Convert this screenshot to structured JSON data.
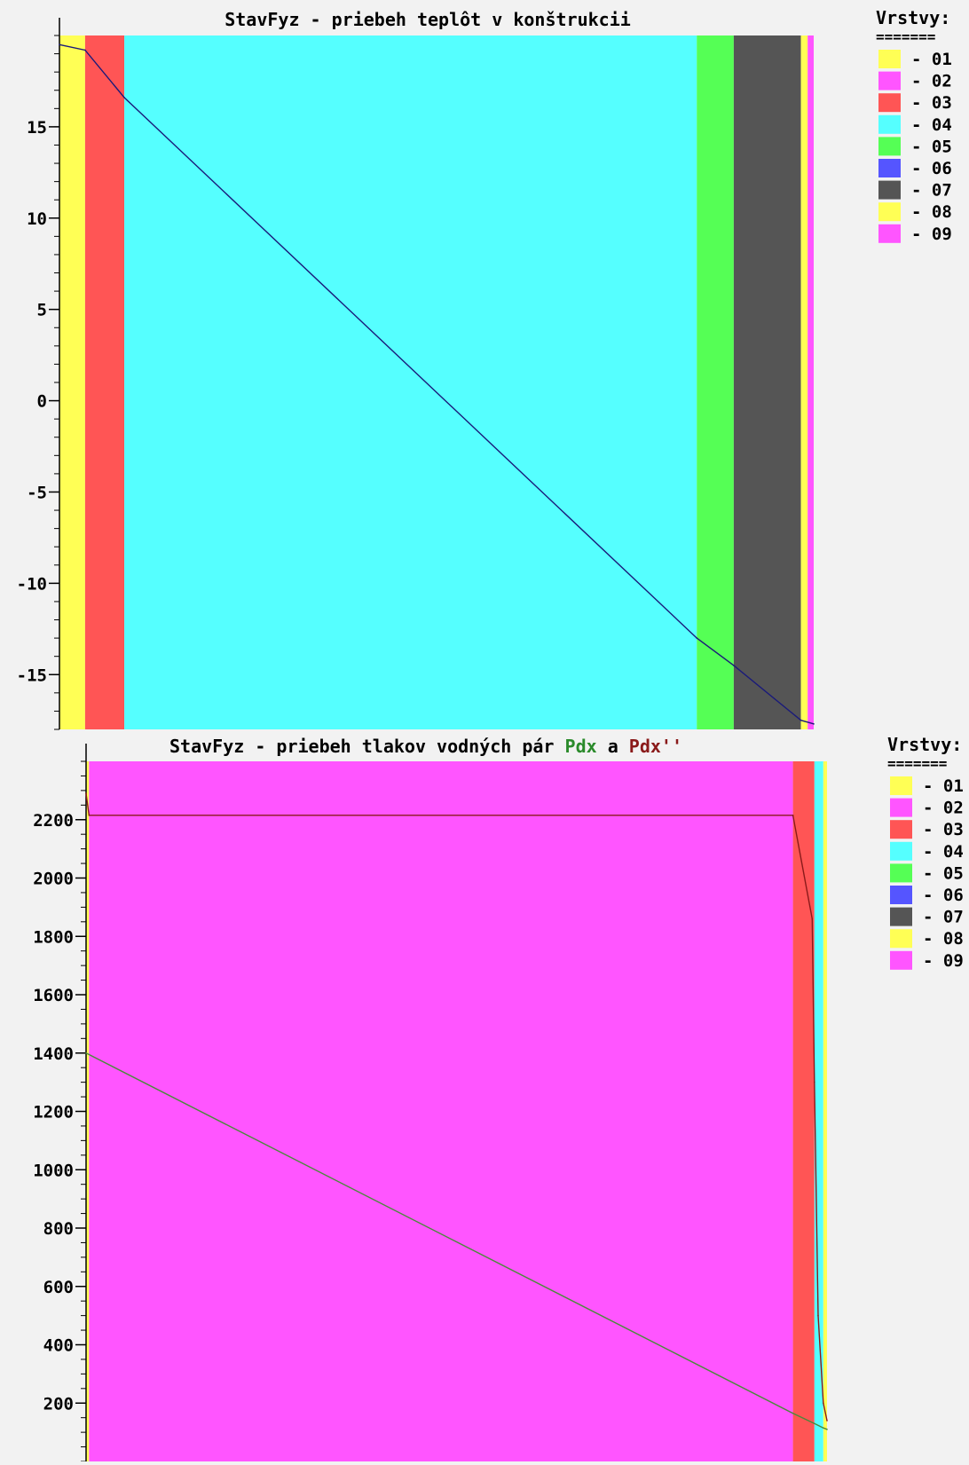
{
  "colors": {
    "background": "#f2f2f2",
    "axis": "#000000",
    "temp_line": "#1a1a7a",
    "pdx_line": "#4a8a3a",
    "pdx_sat_line": "#8a1a1a",
    "title_green": "#2a8a2a",
    "title_red": "#8a1a1a"
  },
  "legend_top": {
    "title": "Vrstvy:",
    "rule": "=======",
    "items": [
      {
        "label": "- 01",
        "color": "#ffff55"
      },
      {
        "label": "- 02",
        "color": "#ff55ff"
      },
      {
        "label": "- 03",
        "color": "#ff5555"
      },
      {
        "label": "- 04",
        "color": "#55ffff"
      },
      {
        "label": "- 05",
        "color": "#55ff55"
      },
      {
        "label": "- 06",
        "color": "#5555ff"
      },
      {
        "label": "- 07",
        "color": "#555555"
      },
      {
        "label": "- 08",
        "color": "#ffff55"
      },
      {
        "label": "- 09",
        "color": "#ff55ff"
      }
    ]
  },
  "legend_bottom": {
    "title": "Vrstvy:",
    "rule": "=======",
    "items": [
      {
        "label": "- 01",
        "color": "#ffff55"
      },
      {
        "label": "- 02",
        "color": "#ff55ff"
      },
      {
        "label": "- 03",
        "color": "#ff5555"
      },
      {
        "label": "- 04",
        "color": "#55ffff"
      },
      {
        "label": "- 05",
        "color": "#55ff55"
      },
      {
        "label": "- 06",
        "color": "#5555ff"
      },
      {
        "label": "- 07",
        "color": "#555555"
      },
      {
        "label": "- 08",
        "color": "#ffff55"
      },
      {
        "label": "- 09",
        "color": "#ff55ff"
      }
    ]
  },
  "chart_data": [
    {
      "type": "line",
      "title": "StavFyz - priebeh teplôt v konštrukcii",
      "xlabel": "",
      "ylabel": "",
      "ylim": [
        -18,
        20
      ],
      "xlim": [
        0,
        100
      ],
      "yticks": [
        15,
        10,
        5,
        0,
        -5,
        -10,
        -15
      ],
      "ytick_labels": [
        "15",
        "10",
        "5",
        "0",
        "-5",
        "-10",
        "-15"
      ],
      "layers": [
        {
          "id": "01",
          "from": 0.0,
          "to": 3.4,
          "color": "#ffff55"
        },
        {
          "id": "03",
          "from": 3.4,
          "to": 8.6,
          "color": "#ff5555"
        },
        {
          "id": "04",
          "from": 8.6,
          "to": 84.5,
          "color": "#55ffff"
        },
        {
          "id": "05",
          "from": 84.5,
          "to": 89.4,
          "color": "#55ff55"
        },
        {
          "id": "07",
          "from": 89.4,
          "to": 98.3,
          "color": "#555555"
        },
        {
          "id": "08",
          "from": 98.3,
          "to": 99.2,
          "color": "#ffff55"
        },
        {
          "id": "09",
          "from": 99.2,
          "to": 100.0,
          "color": "#ff55ff"
        }
      ],
      "series": [
        {
          "color": "#1a1a7a",
          "x": [
            0.0,
            3.4,
            8.6,
            84.5,
            89.4,
            98.3,
            100.0
          ],
          "y": [
            19.5,
            19.2,
            16.6,
            -13.0,
            -14.5,
            -17.5,
            -17.7
          ]
        }
      ]
    },
    {
      "type": "line",
      "title": "StavFyz - priebeh tlakov vodných pár",
      "title_parts": [
        "StavFyz - priebeh tlakov vodných pár ",
        "Pdx",
        " a ",
        "Pdx''"
      ],
      "xlabel": "",
      "ylabel": "",
      "ylim": [
        0,
        2400
      ],
      "xlim": [
        0,
        100
      ],
      "yticks": [
        2200,
        2000,
        1800,
        1600,
        1400,
        1200,
        1000,
        800,
        600,
        400,
        200
      ],
      "ytick_labels": [
        "2200",
        "2000",
        "1800",
        "1600",
        "1400",
        "1200",
        "1000",
        "800",
        "600",
        "400",
        "200"
      ],
      "layers": [
        {
          "id": "01",
          "from": 0.0,
          "to": 0.4,
          "color": "#ffff55"
        },
        {
          "id": "02",
          "from": 0.4,
          "to": 95.4,
          "color": "#ff55ff"
        },
        {
          "id": "03",
          "from": 95.4,
          "to": 98.3,
          "color": "#ff5555"
        },
        {
          "id": "04",
          "from": 98.3,
          "to": 99.5,
          "color": "#55ffff"
        },
        {
          "id": "08",
          "from": 99.5,
          "to": 100.0,
          "color": "#ffff55"
        }
      ],
      "series": [
        {
          "name": "Pdx",
          "color": "#4a8a3a",
          "x": [
            0.0,
            95.4,
            98.3,
            99.5,
            100.0
          ],
          "y": [
            1400,
            165,
            130,
            115,
            110
          ]
        },
        {
          "name": "Pdx''",
          "color": "#8a1a1a",
          "x": [
            0.0,
            0.4,
            95.4,
            98.0,
            98.3,
            98.8,
            99.5,
            100.0
          ],
          "y": [
            2290,
            2215,
            2215,
            1860,
            1300,
            500,
            200,
            140
          ]
        }
      ]
    }
  ]
}
